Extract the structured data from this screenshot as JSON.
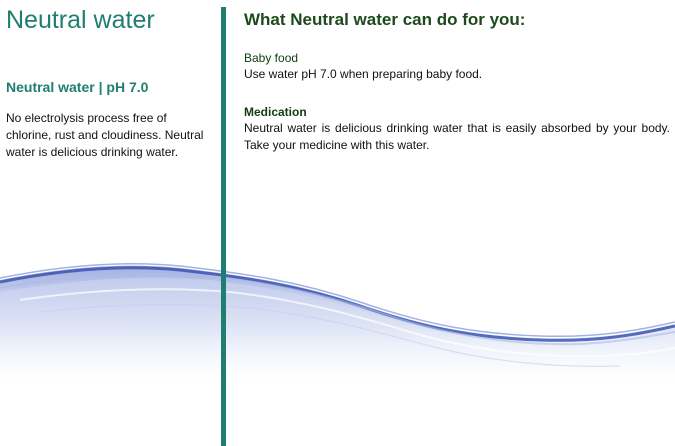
{
  "left": {
    "title": "Neutral water",
    "subtitle": "Neutral water | pH 7.0",
    "body": "No electrolysis process free of chlorine, rust and cloudiness. Neutral water is delicious drinking water."
  },
  "right": {
    "title": "What Neutral water can do for you:",
    "items": [
      {
        "heading": "Baby food",
        "text": "Use water pH 7.0 when preparing baby food."
      },
      {
        "heading": "Medication",
        "text": "Neutral water is delicious drinking water that is easily absorbed by your body. Take your medicine with this water."
      }
    ]
  },
  "colors": {
    "accent": "#1f7e6f",
    "heading_dark_green": "#1c4a1c",
    "wave_blue": "#3a55b0"
  },
  "decoration": {
    "wave": "water-wave-illustration"
  }
}
